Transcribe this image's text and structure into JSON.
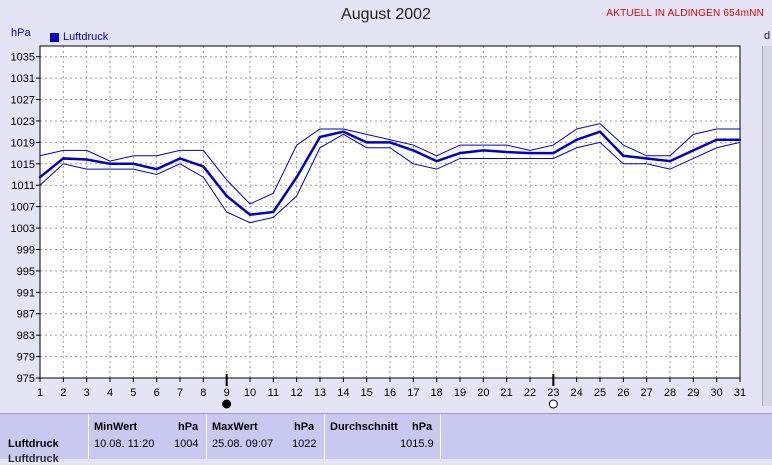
{
  "chart_data": {
    "type": "line",
    "title": "August 2002",
    "site": "AKTUELL IN ALDINGEN 654mNN",
    "ylabel": "hPa",
    "ylim": [
      975,
      1037
    ],
    "y_ticks": [
      975,
      979,
      983,
      987,
      991,
      995,
      999,
      1003,
      1007,
      1011,
      1015,
      1019,
      1023,
      1027,
      1031,
      1035
    ],
    "x_ticks": [
      1,
      2,
      3,
      4,
      5,
      6,
      7,
      8,
      9,
      10,
      11,
      12,
      13,
      14,
      15,
      16,
      17,
      18,
      19,
      20,
      21,
      22,
      23,
      24,
      25,
      26,
      27,
      28,
      29,
      30,
      31
    ],
    "grid": true,
    "legend": [
      "Luftdruck"
    ],
    "series": [
      {
        "name": "Luftdruck",
        "x": [
          1,
          2,
          3,
          4,
          5,
          6,
          7,
          8,
          9,
          10,
          11,
          12,
          13,
          14,
          15,
          16,
          17,
          18,
          19,
          20,
          21,
          22,
          23,
          24,
          25,
          26,
          27,
          28,
          29,
          30,
          31
        ],
        "values": [
          1012.5,
          1016.0,
          1015.8,
          1015.0,
          1015.0,
          1014.0,
          1016.0,
          1014.5,
          1009.0,
          1005.5,
          1006.0,
          1012.5,
          1020.0,
          1021.0,
          1019.0,
          1019.0,
          1017.5,
          1015.5,
          1017.0,
          1017.5,
          1017.2,
          1017.0,
          1017.0,
          1019.5,
          1021.0,
          1016.5,
          1016.0,
          1015.5,
          1017.5,
          1019.5,
          1019.5
        ],
        "max": [
          1016.5,
          1017.5,
          1017.5,
          1015.5,
          1016.5,
          1016.5,
          1017.5,
          1017.5,
          1012.0,
          1007.5,
          1009.5,
          1018.5,
          1021.5,
          1021.5,
          1020.5,
          1019.5,
          1018.5,
          1016.5,
          1018.5,
          1018.5,
          1018.5,
          1017.5,
          1018.5,
          1021.5,
          1022.5,
          1018.5,
          1016.5,
          1016.5,
          1020.5,
          1021.5,
          1021.5
        ],
        "min": [
          1011.0,
          1015.0,
          1014.0,
          1014.0,
          1014.0,
          1013.0,
          1015.0,
          1012.5,
          1006.0,
          1004.0,
          1005.0,
          1009.0,
          1018.0,
          1020.5,
          1018.0,
          1018.0,
          1015.0,
          1014.0,
          1016.0,
          1016.0,
          1016.0,
          1016.0,
          1016.0,
          1018.0,
          1019.0,
          1015.0,
          1015.0,
          1014.0,
          1016.0,
          1018.0,
          1019.0
        ],
        "color": "#0000c8"
      }
    ],
    "moon_markers": [
      {
        "day": 9,
        "phase": "new-moon"
      },
      {
        "day": 23,
        "phase": "full-moon"
      }
    ]
  },
  "stats": {
    "row_label": "Luftdruck",
    "row_label_cut": "Luftdruck",
    "min_header": "MinWert",
    "min_unit": "hPa",
    "min_time": "10.08.  11:20",
    "min_value": "1004",
    "max_header": "MaxWert",
    "max_unit": "hPa",
    "max_time": "25.08.  09:07",
    "max_value": "1022",
    "avg_header": "Durchschnitt",
    "avg_unit": "hPa",
    "avg_value": "1015.9"
  },
  "ui": {
    "edge_char": "d"
  },
  "colors": {
    "series": "#0000c8",
    "title_red": "#e00000",
    "stats_bg": "#c9c9f0",
    "plot_bg": "#ffffff"
  }
}
